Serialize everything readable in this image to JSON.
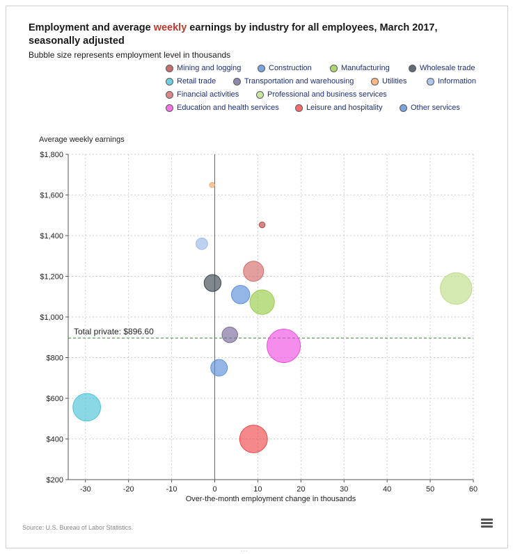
{
  "header": {
    "title_pre": "Employment and average ",
    "title_highlight": "weekly",
    "title_post": " earnings by industry for all employees, March 2017, seasonally adjusted",
    "subtitle": "Bubble size represents employment level in thousands"
  },
  "footer": {
    "source": "Source: U.S. Bureau of Labor Statistics.",
    "menu_icon": "hamburger-menu-icon",
    "stray_text": "- - -"
  },
  "chart_data": {
    "type": "scatter",
    "subtype": "bubble",
    "xlabel": "Over-the-month employment change in thousands",
    "ylabel": "Average weekly earnings",
    "xlim": [
      -34,
      60
    ],
    "ylim": [
      200,
      1800
    ],
    "x_ticks": [
      -30,
      -20,
      -10,
      0,
      10,
      20,
      30,
      40,
      50,
      60
    ],
    "y_ticks": [
      200,
      400,
      600,
      800,
      1000,
      1200,
      1400,
      1600,
      1800
    ],
    "y_tick_labels": [
      "$200",
      "$400",
      "$600",
      "$800",
      "$1,000",
      "$1,200",
      "$1,400",
      "$1,600",
      "$1,800"
    ],
    "grid": true,
    "legend_position": "top",
    "reference_line": {
      "label": "Total private: $896.60",
      "y": 896.6,
      "color": "#2e8b2e"
    },
    "series": [
      {
        "name": "Mining and logging",
        "x": 11,
        "y": 1453,
        "size": 700,
        "color": "#b84a4a"
      },
      {
        "name": "Construction",
        "x": 6,
        "y": 1110,
        "size": 6900,
        "color": "#5b8fd9"
      },
      {
        "name": "Manufacturing",
        "x": 11,
        "y": 1073,
        "size": 12400,
        "color": "#9acd4a"
      },
      {
        "name": "Wholesale trade",
        "x": -0.5,
        "y": 1167,
        "size": 5900,
        "color": "#3c4650"
      },
      {
        "name": "Retail trade",
        "x": -29.7,
        "y": 556,
        "size": 15800,
        "color": "#4cc3d9"
      },
      {
        "name": "Transportation and warehousing",
        "x": 3.5,
        "y": 912,
        "size": 5000,
        "color": "#7a6a9a"
      },
      {
        "name": "Utilities",
        "x": -0.6,
        "y": 1649,
        "size": 550,
        "color": "#f5a86a"
      },
      {
        "name": "Information",
        "x": -3,
        "y": 1360,
        "size": 2750,
        "color": "#9ab8e8"
      },
      {
        "name": "Financial activities",
        "x": 9,
        "y": 1225,
        "size": 8400,
        "color": "#d46a6a"
      },
      {
        "name": "Professional and business services",
        "x": 56,
        "y": 1140,
        "size": 20500,
        "color": "#bedd8a"
      },
      {
        "name": "Education and health services",
        "x": 16,
        "y": 858,
        "size": 23000,
        "color": "#ee50e0"
      },
      {
        "name": "Leisure and hospitality",
        "x": 9,
        "y": 400,
        "size": 15800,
        "color": "#f04848"
      },
      {
        "name": "Other services",
        "x": 1,
        "y": 750,
        "size": 5700,
        "color": "#5b8fd9"
      }
    ]
  }
}
